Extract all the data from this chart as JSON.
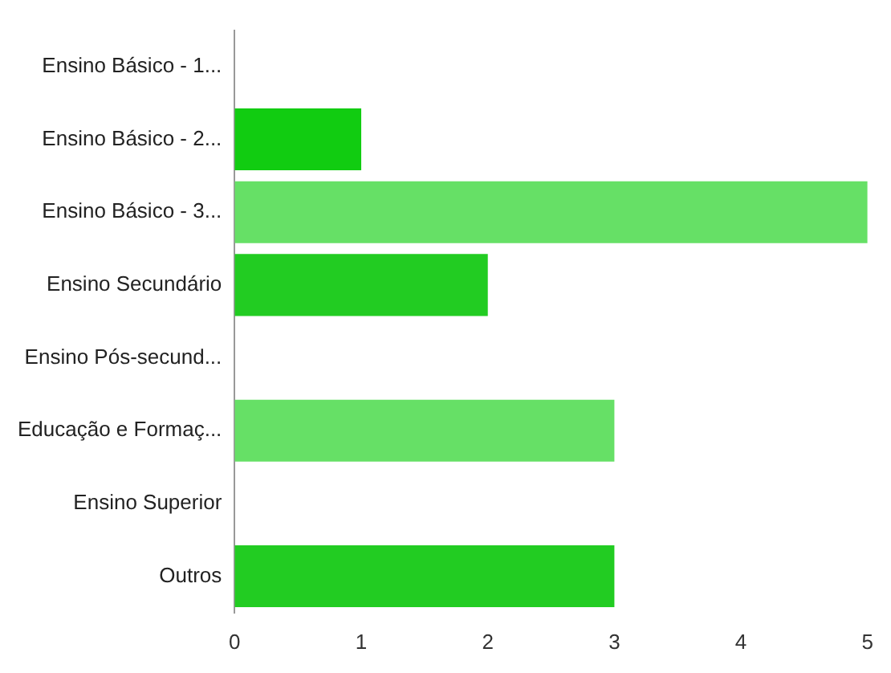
{
  "chart_data": {
    "type": "bar",
    "orientation": "horizontal",
    "categories": [
      "Ensino Básico - 1...",
      "Ensino Básico - 2...",
      "Ensino Básico - 3...",
      "Ensino Secundário",
      "Ensino Pós-secund...",
      "Educação e Formaç...",
      "Ensino Superior",
      "Outros"
    ],
    "values": [
      0,
      1,
      5,
      2,
      0,
      3,
      0,
      3
    ],
    "colors": [
      "#22cc22",
      "#11cc11",
      "#66e066",
      "#22cc22",
      "#22cc22",
      "#66e066",
      "#22cc22",
      "#22cc22"
    ],
    "xlim": [
      0,
      5
    ],
    "xticks": [
      0,
      1,
      2,
      3,
      4,
      5
    ],
    "grid": false,
    "legend": false
  }
}
